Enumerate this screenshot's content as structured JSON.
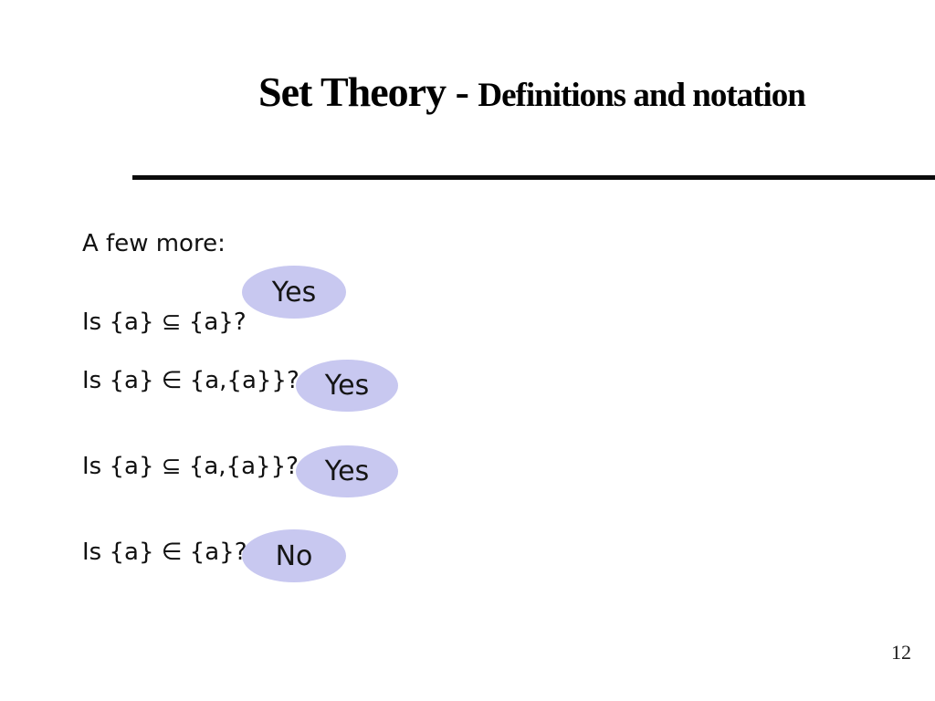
{
  "slide": {
    "title": {
      "main": "Set Theory - ",
      "sub": "Definitions and notation"
    },
    "intro": "A few more:",
    "questions": [
      {
        "text": "Is {a} ⊆ {a}?",
        "answer": "Yes"
      },
      {
        "text": "Is {a} ∈ {a,{a}}?",
        "answer": "Yes"
      },
      {
        "text": "Is {a} ⊆ {a,{a}}?",
        "answer": "Yes"
      },
      {
        "text": "Is {a} ∈ {a}?",
        "answer": "No"
      }
    ],
    "page_number": "12",
    "colors": {
      "ellipse_fill": "#c8c8f0",
      "rule": "#0b0b0b",
      "text": "#111111"
    }
  }
}
